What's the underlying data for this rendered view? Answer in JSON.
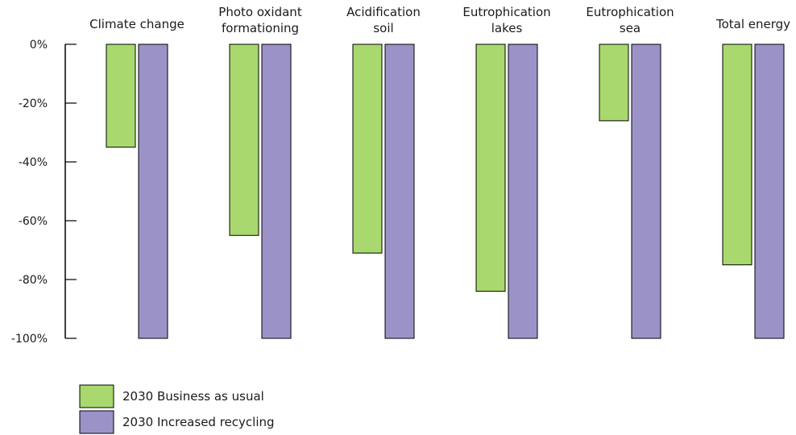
{
  "chart_data": {
    "type": "bar",
    "title": "",
    "xlabel": "",
    "ylabel": "",
    "categories": [
      [
        "Climate change"
      ],
      [
        "Photo oxidant",
        "formationing"
      ],
      [
        "Acidification",
        "soil"
      ],
      [
        "Eutrophication",
        "lakes"
      ],
      [
        "Eutrophication",
        "sea"
      ],
      [
        "Total energy"
      ]
    ],
    "series": [
      {
        "name": "2030 Business as usual",
        "color": "#a9d86e",
        "values": [
          -35,
          -65,
          -71,
          -84,
          -26,
          -75
        ]
      },
      {
        "name": "2030 Increased recycling",
        "color": "#9b93c8",
        "values": [
          -100,
          -100,
          -100,
          -100,
          -100,
          -100
        ]
      }
    ],
    "ylim": [
      -100,
      0
    ],
    "yticks": [
      0,
      -20,
      -40,
      -60,
      -80,
      -100
    ],
    "ytick_labels": [
      "0%",
      "-20%",
      "-40%",
      "-60%",
      "-80%",
      "-100%"
    ],
    "grid": false,
    "legend_position": "bottom-left"
  }
}
